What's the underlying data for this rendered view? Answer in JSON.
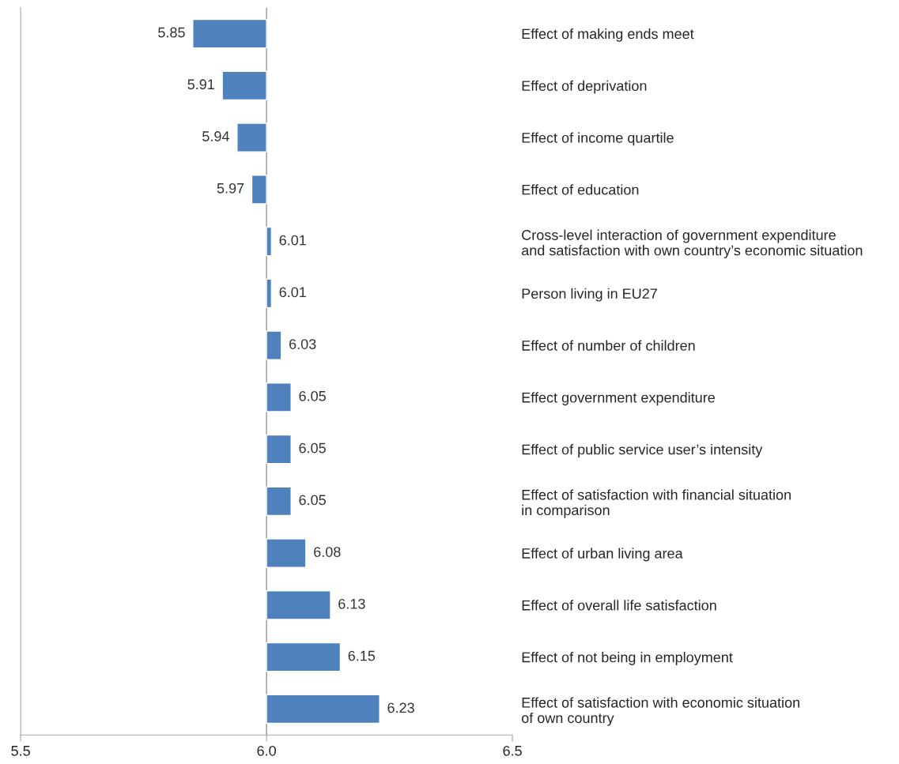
{
  "chart_data": {
    "type": "bar",
    "orientation": "horizontal",
    "categories": [
      "Effect of making ends meet",
      "Effect of deprivation",
      "Effect of income quartile",
      "Effect of education",
      "Cross-level interaction of government expenditure\nand satisfaction with own country’s economic situation",
      "Person living in EU27",
      "Effect of number of children",
      "Effect government expenditure",
      "Effect of public service user’s intensity",
      "Effect of satisfaction with financial situation\nin comparison",
      "Effect of urban living area",
      "Effect of overall life satisfaction",
      "Effect of not being in employment",
      "Effect of satisfaction with economic situation\nof own country"
    ],
    "base": [
      6.0,
      6.0,
      6.0,
      6.0,
      6.0,
      6.0,
      6.0,
      6.0,
      6.0,
      6.0,
      6.0,
      6.0,
      6.0,
      6.0
    ],
    "values": [
      -0.15,
      -0.09,
      -0.06,
      -0.03,
      0.01,
      0.01,
      0.03,
      0.05,
      0.05,
      0.05,
      0.08,
      0.13,
      0.15,
      0.23
    ],
    "value_labels": [
      "5.85",
      "5.91",
      "5.94",
      "5.97",
      "6.01",
      "6.01",
      "6.03",
      "6.05",
      "6.05",
      "6.05",
      "6.08",
      "6.13",
      "6.15",
      "6.23"
    ],
    "color": "#4f81bd",
    "xlim": [
      5.5,
      6.5
    ],
    "xticks": [
      {
        "value": 5.5,
        "label": "5.5"
      },
      {
        "value": 6.0,
        "label": "6.0"
      },
      {
        "value": 6.5,
        "label": "6.5"
      }
    ],
    "ref_lines": [
      {
        "axis": "x",
        "value": 6.0,
        "color": "#a6a6a6"
      }
    ],
    "grid": false,
    "legend": false
  }
}
